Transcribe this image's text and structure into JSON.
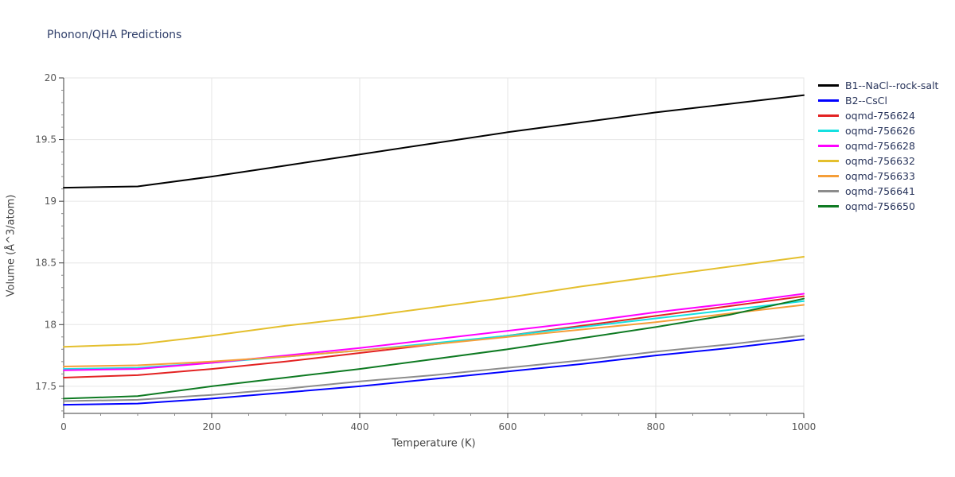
{
  "chart_data": {
    "type": "line",
    "title": "Phonon/QHA Predictions",
    "xlabel": "Temperature (K)",
    "ylabel": "Volume (Å^3/atom)",
    "xlim": [
      0,
      1000
    ],
    "ylim": [
      17.28,
      20.0
    ],
    "xticks": [
      0,
      200,
      400,
      600,
      800,
      1000
    ],
    "yticks": [
      17.5,
      18,
      18.5,
      19,
      19.5,
      20
    ],
    "grid": true,
    "legend_position": "right-outside",
    "x": [
      0,
      100,
      200,
      300,
      400,
      500,
      600,
      700,
      800,
      900,
      1000
    ],
    "series": [
      {
        "name": "B1--NaCl--rock-salt",
        "color": "#000000",
        "values": [
          19.11,
          19.12,
          19.2,
          19.29,
          19.38,
          19.47,
          19.56,
          19.64,
          19.72,
          19.79,
          19.86
        ]
      },
      {
        "name": "B2--CsCl",
        "color": "#0000ff",
        "values": [
          17.35,
          17.36,
          17.4,
          17.45,
          17.5,
          17.56,
          17.62,
          17.68,
          17.75,
          17.81,
          17.88
        ]
      },
      {
        "name": "oqmd-756624",
        "color": "#e32222",
        "values": [
          17.57,
          17.59,
          17.64,
          17.7,
          17.77,
          17.84,
          17.91,
          17.99,
          18.07,
          18.15,
          18.23
        ]
      },
      {
        "name": "oqmd-756626",
        "color": "#15e0e0",
        "values": [
          17.64,
          17.65,
          17.69,
          17.74,
          17.79,
          17.85,
          17.91,
          17.98,
          18.05,
          18.12,
          18.19
        ]
      },
      {
        "name": "oqmd-756628",
        "color": "#ff00ff",
        "values": [
          17.63,
          17.64,
          17.69,
          17.75,
          17.81,
          17.88,
          17.95,
          18.02,
          18.1,
          18.17,
          18.25
        ]
      },
      {
        "name": "oqmd-756632",
        "color": "#e4bf2d",
        "values": [
          17.82,
          17.84,
          17.91,
          17.99,
          18.06,
          18.14,
          18.22,
          18.31,
          18.39,
          18.47,
          18.55
        ]
      },
      {
        "name": "oqmd-756633",
        "color": "#f59e38",
        "values": [
          17.66,
          17.67,
          17.7,
          17.74,
          17.79,
          17.84,
          17.9,
          17.96,
          18.02,
          18.09,
          18.16
        ]
      },
      {
        "name": "oqmd-756641",
        "color": "#8c8c8c",
        "values": [
          17.38,
          17.39,
          17.43,
          17.48,
          17.54,
          17.59,
          17.65,
          17.71,
          17.78,
          17.84,
          17.91
        ]
      },
      {
        "name": "oqmd-756650",
        "color": "#0e7a22",
        "values": [
          17.4,
          17.42,
          17.5,
          17.57,
          17.64,
          17.72,
          17.8,
          17.89,
          17.98,
          18.08,
          18.21
        ]
      }
    ]
  }
}
